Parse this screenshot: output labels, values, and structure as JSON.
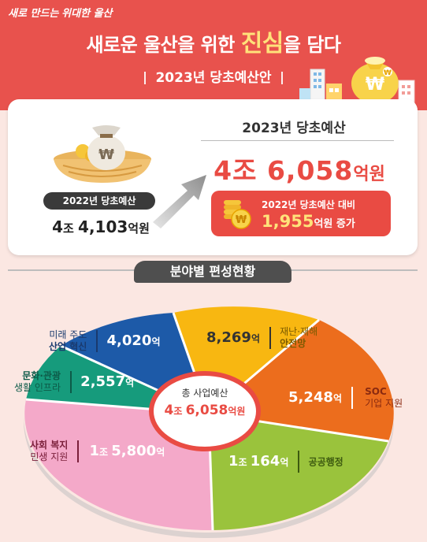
{
  "header": {
    "slogan_a": "새로 만드는",
    "slogan_b": "위대한 울산",
    "title_pre": "새로운 울산을 위한",
    "title_highlight": "진심",
    "title_post": "을 담다",
    "subtitle": "2023년 당초예산안"
  },
  "previous": {
    "label": "2022년 당초예산",
    "amount_a": "4",
    "unit_a": "조 ",
    "amount_b": "4,103",
    "unit_b": "억원"
  },
  "current": {
    "title": "2023년 당초예산",
    "amount_a": "4",
    "unit_a": "조 ",
    "amount_b": "6,058",
    "unit_b": "억원"
  },
  "increase": {
    "label": "2022년 당초예산 대비",
    "amount": "1,955",
    "unit": "억원",
    "suffix": " 증가"
  },
  "section": {
    "title": "분야별 편성현황"
  },
  "center": {
    "label": "총 사업예산",
    "amount_a": "4",
    "unit_a": "조 ",
    "amount_b": "6,058",
    "unit_b": "억원"
  },
  "sectors": [
    {
      "name_a": "재난·재해",
      "name_b": "안전망",
      "value": "8,269",
      "unit": "억",
      "color": "#f8b711"
    },
    {
      "name_a": "SOC",
      "name_b": "기업 지원",
      "value": "5,248",
      "unit": "억",
      "color": "#ec6d1d"
    },
    {
      "name_a": "공공행정",
      "name_b": "",
      "value_a": "1",
      "unit_a": "조 ",
      "value": "164",
      "unit": "억",
      "color": "#9ac33c"
    },
    {
      "name_a": "사회 복지",
      "name_b": "민생 지원",
      "value_a": "1",
      "unit_a": "조 ",
      "value": "5,800",
      "unit": "억",
      "color": "#f4a9c9"
    },
    {
      "name_a": "문화·관광",
      "name_b": "생활 인프라",
      "value": "2,557",
      "unit": "억",
      "color": "#169b7c"
    },
    {
      "name_a": "미래 주도",
      "name_b": "산업 혁신",
      "value": "4,020",
      "unit": "억",
      "color": "#1d5aa8"
    }
  ]
}
